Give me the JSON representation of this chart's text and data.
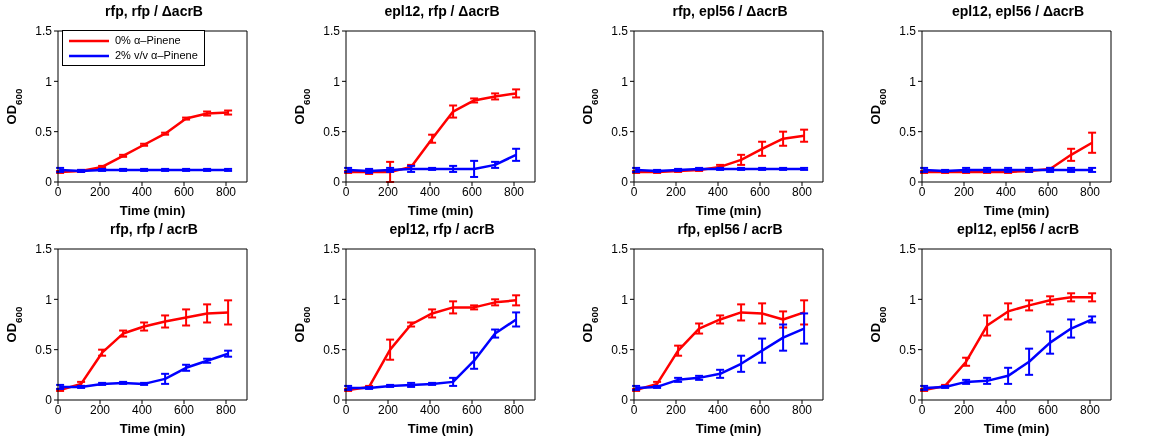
{
  "chart_data": [
    {
      "type": "line",
      "title": "rfp, rfp / ΔacrB",
      "xlabel": "Time (min)",
      "ylabel": "OD$_{600}$",
      "x": [
        10,
        110,
        210,
        310,
        410,
        510,
        610,
        710,
        810
      ],
      "xlim": [
        0,
        900
      ],
      "xticks": [
        0,
        200,
        400,
        600,
        800
      ],
      "ylim": [
        0,
        1.5
      ],
      "yticks": [
        0,
        0.5,
        1,
        1.5
      ],
      "legend": "top left",
      "series": [
        {
          "name": "0% α–Pinene",
          "color": "#ff0000",
          "values": [
            0.1,
            0.11,
            0.15,
            0.26,
            0.37,
            0.48,
            0.63,
            0.68,
            0.69
          ],
          "errors": [
            0.01,
            0.01,
            0.01,
            0.01,
            0.01,
            0.01,
            0.01,
            0.02,
            0.02
          ]
        },
        {
          "name": "2% v/v α–Pinene",
          "color": "#0000ff",
          "values": [
            0.12,
            0.11,
            0.12,
            0.12,
            0.12,
            0.12,
            0.12,
            0.12,
            0.12
          ],
          "errors": [
            0.02,
            0.01,
            0.01,
            0.01,
            0.01,
            0.01,
            0.01,
            0.01,
            0.01
          ]
        }
      ]
    },
    {
      "type": "line",
      "title": "epl12, rfp / ΔacrB",
      "xlabel": "Time (min)",
      "ylabel": "OD$_{600}$",
      "x": [
        10,
        110,
        210,
        310,
        410,
        510,
        610,
        710,
        810
      ],
      "xlim": [
        0,
        900
      ],
      "xticks": [
        0,
        200,
        400,
        600,
        800
      ],
      "ylim": [
        0,
        1.5
      ],
      "yticks": [
        0,
        0.5,
        1,
        1.5
      ],
      "series": [
        {
          "color": "#ff0000",
          "values": [
            0.1,
            0.1,
            0.1,
            0.15,
            0.43,
            0.7,
            0.81,
            0.85,
            0.88
          ],
          "errors": [
            0.01,
            0.02,
            0.1,
            0.02,
            0.04,
            0.06,
            0.02,
            0.03,
            0.04
          ]
        },
        {
          "color": "#0000ff",
          "values": [
            0.12,
            0.11,
            0.12,
            0.13,
            0.13,
            0.13,
            0.13,
            0.17,
            0.27
          ],
          "errors": [
            0.02,
            0.02,
            0.02,
            0.03,
            0.01,
            0.03,
            0.08,
            0.03,
            0.06
          ]
        }
      ]
    },
    {
      "type": "line",
      "title": "rfp, epl56 / ΔacrB",
      "xlabel": "Time (min)",
      "ylabel": "OD$_{600}$",
      "x": [
        10,
        110,
        210,
        310,
        410,
        510,
        610,
        710,
        810
      ],
      "xlim": [
        0,
        900
      ],
      "xticks": [
        0,
        200,
        400,
        600,
        800
      ],
      "ylim": [
        0,
        1.5
      ],
      "yticks": [
        0,
        0.5,
        1,
        1.5
      ],
      "series": [
        {
          "color": "#ff0000",
          "values": [
            0.1,
            0.1,
            0.11,
            0.12,
            0.15,
            0.22,
            0.33,
            0.43,
            0.46
          ],
          "errors": [
            0.01,
            0.01,
            0.01,
            0.01,
            0.02,
            0.05,
            0.07,
            0.07,
            0.06
          ]
        },
        {
          "color": "#0000ff",
          "values": [
            0.12,
            0.11,
            0.12,
            0.13,
            0.13,
            0.13,
            0.13,
            0.13,
            0.13
          ],
          "errors": [
            0.02,
            0.01,
            0.01,
            0.01,
            0.01,
            0.01,
            0.01,
            0.01,
            0.01
          ]
        }
      ]
    },
    {
      "type": "line",
      "title": "epl12, epl56 / ΔacrB",
      "xlabel": "Time (min)",
      "ylabel": "OD$_{600}$",
      "x": [
        10,
        110,
        210,
        310,
        410,
        510,
        610,
        710,
        810
      ],
      "xlim": [
        0,
        900
      ],
      "xticks": [
        0,
        200,
        400,
        600,
        800
      ],
      "ylim": [
        0,
        1.5
      ],
      "yticks": [
        0,
        0.5,
        1,
        1.5
      ],
      "series": [
        {
          "color": "#ff0000",
          "values": [
            0.1,
            0.1,
            0.1,
            0.1,
            0.1,
            0.11,
            0.13,
            0.27,
            0.39
          ],
          "errors": [
            0.01,
            0.01,
            0.01,
            0.01,
            0.01,
            0.01,
            0.01,
            0.06,
            0.1
          ]
        },
        {
          "color": "#0000ff",
          "values": [
            0.12,
            0.11,
            0.12,
            0.12,
            0.12,
            0.12,
            0.12,
            0.12,
            0.12
          ],
          "errors": [
            0.02,
            0.01,
            0.02,
            0.02,
            0.02,
            0.02,
            0.02,
            0.02,
            0.02
          ]
        }
      ]
    },
    {
      "type": "line",
      "title": "rfp, rfp / acrB",
      "xlabel": "Time (min)",
      "ylabel": "OD$_{600}$",
      "x": [
        10,
        110,
        210,
        310,
        410,
        510,
        610,
        710,
        810
      ],
      "xlim": [
        0,
        900
      ],
      "xticks": [
        0,
        200,
        400,
        600,
        800
      ],
      "ylim": [
        0,
        1.5
      ],
      "yticks": [
        0,
        0.5,
        1,
        1.5
      ],
      "series": [
        {
          "color": "#ff0000",
          "values": [
            0.1,
            0.16,
            0.47,
            0.66,
            0.73,
            0.78,
            0.82,
            0.86,
            0.87
          ],
          "errors": [
            0.01,
            0.02,
            0.03,
            0.03,
            0.04,
            0.06,
            0.08,
            0.09,
            0.12
          ]
        },
        {
          "color": "#0000ff",
          "values": [
            0.13,
            0.13,
            0.16,
            0.17,
            0.16,
            0.21,
            0.32,
            0.39,
            0.46
          ],
          "errors": [
            0.02,
            0.01,
            0.01,
            0.01,
            0.01,
            0.05,
            0.03,
            0.02,
            0.03
          ]
        }
      ]
    },
    {
      "type": "line",
      "title": "epl12, rfp / acrB",
      "xlabel": "Time (min)",
      "ylabel": "OD$_{600}$",
      "x": [
        10,
        110,
        210,
        310,
        410,
        510,
        610,
        710,
        810
      ],
      "xlim": [
        0,
        900
      ],
      "xticks": [
        0,
        200,
        400,
        600,
        800
      ],
      "ylim": [
        0,
        1.5
      ],
      "yticks": [
        0,
        0.5,
        1,
        1.5
      ],
      "series": [
        {
          "color": "#ff0000",
          "values": [
            0.1,
            0.13,
            0.5,
            0.75,
            0.86,
            0.92,
            0.92,
            0.97,
            0.99
          ],
          "errors": [
            0.01,
            0.01,
            0.1,
            0.02,
            0.04,
            0.06,
            0.02,
            0.03,
            0.05
          ]
        },
        {
          "color": "#0000ff",
          "values": [
            0.12,
            0.12,
            0.14,
            0.15,
            0.16,
            0.18,
            0.39,
            0.66,
            0.8
          ],
          "errors": [
            0.02,
            0.01,
            0.01,
            0.02,
            0.01,
            0.04,
            0.08,
            0.04,
            0.07
          ]
        }
      ]
    },
    {
      "type": "line",
      "title": "rfp, epl56 / acrB",
      "xlabel": "Time (min)",
      "ylabel": "OD$_{600}$",
      "x": [
        10,
        110,
        210,
        310,
        410,
        510,
        610,
        710,
        810
      ],
      "xlim": [
        0,
        900
      ],
      "xticks": [
        0,
        200,
        400,
        600,
        800
      ],
      "ylim": [
        0,
        1.5
      ],
      "yticks": [
        0,
        0.5,
        1,
        1.5
      ],
      "series": [
        {
          "color": "#ff0000",
          "values": [
            0.1,
            0.16,
            0.49,
            0.71,
            0.8,
            0.87,
            0.86,
            0.8,
            0.87
          ],
          "errors": [
            0.01,
            0.02,
            0.05,
            0.05,
            0.04,
            0.08,
            0.1,
            0.08,
            0.12
          ]
        },
        {
          "color": "#0000ff",
          "values": [
            0.12,
            0.13,
            0.2,
            0.22,
            0.26,
            0.36,
            0.49,
            0.62,
            0.71
          ],
          "errors": [
            0.02,
            0.01,
            0.02,
            0.02,
            0.04,
            0.08,
            0.12,
            0.13,
            0.15
          ]
        }
      ]
    },
    {
      "type": "line",
      "title": "epl12, epl56 / acrB",
      "xlabel": "Time (min)",
      "ylabel": "OD$_{600}$",
      "x": [
        10,
        110,
        210,
        310,
        410,
        510,
        610,
        710,
        810
      ],
      "xlim": [
        0,
        900
      ],
      "xticks": [
        0,
        200,
        400,
        600,
        800
      ],
      "ylim": [
        0,
        1.5
      ],
      "yticks": [
        0,
        0.5,
        1,
        1.5
      ],
      "series": [
        {
          "color": "#ff0000",
          "values": [
            0.1,
            0.14,
            0.38,
            0.74,
            0.88,
            0.94,
            0.99,
            1.02,
            1.02
          ],
          "errors": [
            0.01,
            0.01,
            0.04,
            0.1,
            0.08,
            0.05,
            0.04,
            0.04,
            0.04
          ]
        },
        {
          "color": "#0000ff",
          "values": [
            0.12,
            0.13,
            0.18,
            0.19,
            0.24,
            0.38,
            0.57,
            0.71,
            0.8
          ],
          "errors": [
            0.02,
            0.01,
            0.02,
            0.03,
            0.08,
            0.13,
            0.11,
            0.09,
            0.03
          ]
        }
      ]
    }
  ]
}
